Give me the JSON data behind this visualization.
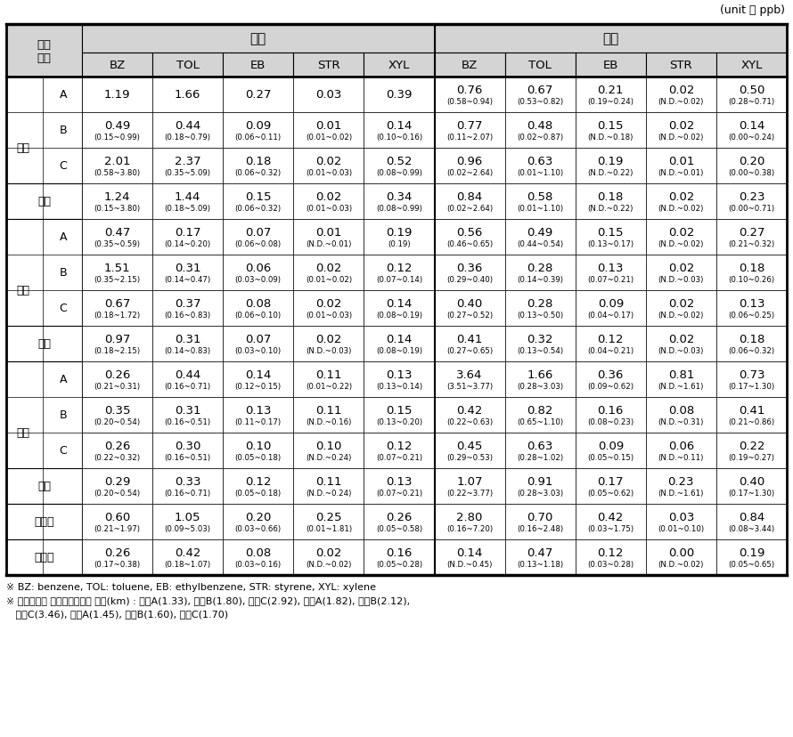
{
  "unit_label": "(unit ： ppb)",
  "groups": [
    {
      "name": "먼도",
      "rows": [
        {
          "label": "A",
          "summer": [
            "1.19",
            "1.66",
            "0.27",
            "0.03",
            "0.39"
          ],
          "summer_sub": [
            "",
            "",
            "",
            "",
            ""
          ],
          "fall": [
            "0.76",
            "0.67",
            "0.21",
            "0.02",
            "0.50"
          ],
          "fall_sub": [
            "(0.58~0.94)",
            "(0.53~0.82)",
            "(0.19~0.24)",
            "(N.D.~0.02)",
            "(0.28~0.71)"
          ]
        },
        {
          "label": "B",
          "summer": [
            "0.49",
            "0.44",
            "0.09",
            "0.01",
            "0.14"
          ],
          "summer_sub": [
            "(0.15~0.99)",
            "(0.18~0.79)",
            "(0.06~0.11)",
            "(0.01~0.02)",
            "(0.10~0.16)"
          ],
          "fall": [
            "0.77",
            "0.48",
            "0.15",
            "0.02",
            "0.14"
          ],
          "fall_sub": [
            "(0.11~2.07)",
            "(0.02~0.87)",
            "(N.D.~0.18)",
            "(N.D.~0.02)",
            "(0.00~0.24)"
          ]
        },
        {
          "label": "C",
          "summer": [
            "2.01",
            "2.37",
            "0.18",
            "0.02",
            "0.52"
          ],
          "summer_sub": [
            "(0.58~3.80)",
            "(0.35~5.09)",
            "(0.06~0.32)",
            "(0.01~0.03)",
            "(0.08~0.99)"
          ],
          "fall": [
            "0.96",
            "0.63",
            "0.19",
            "0.01",
            "0.20"
          ],
          "fall_sub": [
            "(0.02~2.64)",
            "(0.01~1.10)",
            "(N.D.~0.22)",
            "(N.D.~0.01)",
            "(0.00~0.38)"
          ]
        }
      ],
      "avg_row": {
        "label": "평균",
        "summer": [
          "1.24",
          "1.44",
          "0.15",
          "0.02",
          "0.34"
        ],
        "summer_sub": [
          "(0.15~3.80)",
          "(0.18~5.09)",
          "(0.06~0.32)",
          "(0.01~0.03)",
          "(0.08~0.99)"
        ],
        "fall": [
          "0.84",
          "0.58",
          "0.18",
          "0.02",
          "0.23"
        ],
        "fall_sub": [
          "(0.02~2.64)",
          "(0.01~1.10)",
          "(N.D.~0.22)",
          "(N.D.~0.02)",
          "(0.00~0.71)"
        ]
      }
    },
    {
      "name": "삼일",
      "rows": [
        {
          "label": "A",
          "summer": [
            "0.47",
            "0.17",
            "0.07",
            "0.01",
            "0.19"
          ],
          "summer_sub": [
            "(0.35~0.59)",
            "(0.14~0.20)",
            "(0.06~0.08)",
            "(N.D.~0.01)",
            "(0.19)"
          ],
          "fall": [
            "0.56",
            "0.49",
            "0.15",
            "0.02",
            "0.27"
          ],
          "fall_sub": [
            "(0.46~0.65)",
            "(0.44~0.54)",
            "(0.13~0.17)",
            "(N.D.~0.02)",
            "(0.21~0.32)"
          ]
        },
        {
          "label": "B",
          "summer": [
            "1.51",
            "0.31",
            "0.06",
            "0.02",
            "0.12"
          ],
          "summer_sub": [
            "(0.35~2.15)",
            "(0.14~0.47)",
            "(0.03~0.09)",
            "(0.01~0.02)",
            "(0.07~0.14)"
          ],
          "fall": [
            "0.36",
            "0.28",
            "0.13",
            "0.02",
            "0.18"
          ],
          "fall_sub": [
            "(0.29~0.40)",
            "(0.14~0.39)",
            "(0.07~0.21)",
            "(N.D.~0.03)",
            "(0.10~0.26)"
          ]
        },
        {
          "label": "C",
          "summer": [
            "0.67",
            "0.37",
            "0.08",
            "0.02",
            "0.14"
          ],
          "summer_sub": [
            "(0.18~1.72)",
            "(0.16~0.83)",
            "(0.06~0.10)",
            "(0.01~0.03)",
            "(0.08~0.19)"
          ],
          "fall": [
            "0.40",
            "0.28",
            "0.09",
            "0.02",
            "0.13"
          ],
          "fall_sub": [
            "(0.27~0.52)",
            "(0.13~0.50)",
            "(0.04~0.17)",
            "(N.D.~0.02)",
            "(0.06~0.25)"
          ]
        }
      ],
      "avg_row": {
        "label": "평균",
        "summer": [
          "0.97",
          "0.31",
          "0.07",
          "0.02",
          "0.14"
        ],
        "summer_sub": [
          "(0.18~2.15)",
          "(0.14~0.83)",
          "(0.03~0.10)",
          "(N.D.~0.03)",
          "(0.08~0.19)"
        ],
        "fall": [
          "0.41",
          "0.32",
          "0.12",
          "0.02",
          "0.18"
        ],
        "fall_sub": [
          "(0.27~0.65)",
          "(0.13~0.54)",
          "(0.04~0.21)",
          "(N.D.~0.03)",
          "(0.06~0.32)"
        ]
      }
    },
    {
      "name": "주삼",
      "rows": [
        {
          "label": "A",
          "summer": [
            "0.26",
            "0.44",
            "0.14",
            "0.11",
            "0.13"
          ],
          "summer_sub": [
            "(0.21~0.31)",
            "(0.16~0.71)",
            "(0.12~0.15)",
            "(0.01~0.22)",
            "(0.13~0.14)"
          ],
          "fall": [
            "3.64",
            "1.66",
            "0.36",
            "0.81",
            "0.73"
          ],
          "fall_sub": [
            "(3.51~3.77)",
            "(0.28~3.03)",
            "(0.09~0.62)",
            "(N.D.~1.61)",
            "(0.17~1.30)"
          ]
        },
        {
          "label": "B",
          "summer": [
            "0.35",
            "0.31",
            "0.13",
            "0.11",
            "0.15"
          ],
          "summer_sub": [
            "(0.20~0.54)",
            "(0.16~0.51)",
            "(0.11~0.17)",
            "(N.D.~0.16)",
            "(0.13~0.20)"
          ],
          "fall": [
            "0.42",
            "0.82",
            "0.16",
            "0.08",
            "0.41"
          ],
          "fall_sub": [
            "(0.22~0.63)",
            "(0.65~1.10)",
            "(0.08~0.23)",
            "(N.D.~0.31)",
            "(0.21~0.86)"
          ]
        },
        {
          "label": "C",
          "summer": [
            "0.26",
            "0.30",
            "0.10",
            "0.10",
            "0.12"
          ],
          "summer_sub": [
            "(0.22~0.32)",
            "(0.16~0.51)",
            "(0.05~0.18)",
            "(N.D.~0.24)",
            "(0.07~0.21)"
          ],
          "fall": [
            "0.45",
            "0.63",
            "0.09",
            "0.06",
            "0.22"
          ],
          "fall_sub": [
            "(0.29~0.53)",
            "(0.28~1.02)",
            "(0.05~0.15)",
            "(N.D.~0.11)",
            "(0.19~0.27)"
          ]
        }
      ],
      "avg_row": {
        "label": "평균",
        "summer": [
          "0.29",
          "0.33",
          "0.12",
          "0.11",
          "0.13"
        ],
        "summer_sub": [
          "(0.20~0.54)",
          "(0.16~0.71)",
          "(0.05~0.18)",
          "(N.D.~0.24)",
          "(0.07~0.21)"
        ],
        "fall": [
          "1.07",
          "0.91",
          "0.17",
          "0.23",
          "0.40"
        ],
        "fall_sub": [
          "(0.22~3.77)",
          "(0.28~3.03)",
          "(0.05~0.62)",
          "(N.D.~1.61)",
          "(0.17~1.30)"
        ]
      }
    }
  ],
  "single_rows": [
    {
      "label": "해산동",
      "summer": [
        "0.60",
        "1.05",
        "0.20",
        "0.25",
        "0.26"
      ],
      "summer_sub": [
        "(0.21~1.97)",
        "(0.09~5.03)",
        "(0.03~0.66)",
        "(0.01~1.81)",
        "(0.05~0.58)"
      ],
      "fall": [
        "2.80",
        "0.70",
        "0.42",
        "0.03",
        "0.84"
      ],
      "fall_sub": [
        "(0.16~7.20)",
        "(0.16~2.48)",
        "(0.03~1.75)",
        "(0.01~0.10)",
        "(0.08~3.44)"
      ]
    },
    {
      "label": "돌산읍",
      "summer": [
        "0.26",
        "0.42",
        "0.08",
        "0.02",
        "0.16"
      ],
      "summer_sub": [
        "(0.17~0.38)",
        "(0.18~1.07)",
        "(0.03~0.16)",
        "(N.D.~0.02)",
        "(0.05~0.28)"
      ],
      "fall": [
        "0.14",
        "0.47",
        "0.12",
        "0.00",
        "0.19"
      ],
      "fall_sub": [
        "(N.D.~0.45)",
        "(0.13~1.18)",
        "(0.03~0.28)",
        "(N.D.~0.02)",
        "(0.05~0.65)"
      ]
    }
  ],
  "footnote1": "※ BZ: benzene, TOL: toluene, EB: ethylbenzene, STR: styrene, XYL: xylene",
  "footnote2": "※ 측정지점과 산단경계면과의 거리(km) : 먼도A(1.33), 먼도B(1.80), 먼도C(2.92), 삼일A(1.82), 삼일B(2.12),",
  "footnote3": "   삼일C(3.46), 주삼A(1.45), 주삼B(1.60), 주삼C(1.70)",
  "header_측정지점": "측정\n지점",
  "header_여름": "여름",
  "header_가을": "가을",
  "label_평균": "평균",
  "bg_color": "#ffffff",
  "header_bg": "#d4d4d4",
  "border_color": "#000000",
  "text_color": "#000000"
}
